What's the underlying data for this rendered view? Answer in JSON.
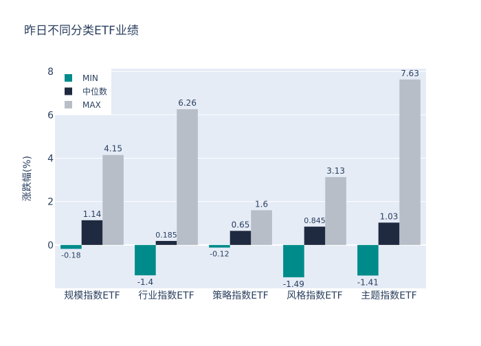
{
  "chart_data": {
    "type": "bar",
    "title": "昨日不同分类ETF业绩",
    "xlabel": "",
    "ylabel": "涨跌幅(%)",
    "ylim": [
      -2,
      8.13
    ],
    "yticks": [
      0,
      2,
      4,
      6,
      8
    ],
    "grid": true,
    "legend_placement": "top-left",
    "categories": [
      "规模指数ETF",
      "行业指数ETF",
      "策略指数ETF",
      "风格指数ETF",
      "主题指数ETF"
    ],
    "series": [
      {
        "name": "MIN",
        "color": "#008b8b",
        "values": [
          -0.18,
          -1.4,
          -0.12,
          -1.49,
          -1.41
        ]
      },
      {
        "name": "中位数",
        "color": "#1f2a40",
        "values": [
          1.14,
          0.185,
          0.65,
          0.845,
          1.03
        ]
      },
      {
        "name": "MAX",
        "color": "#b8bec7",
        "values": [
          4.15,
          6.26,
          1.6,
          3.13,
          7.63
        ]
      }
    ],
    "plot_bg": "#e5ecf6"
  }
}
